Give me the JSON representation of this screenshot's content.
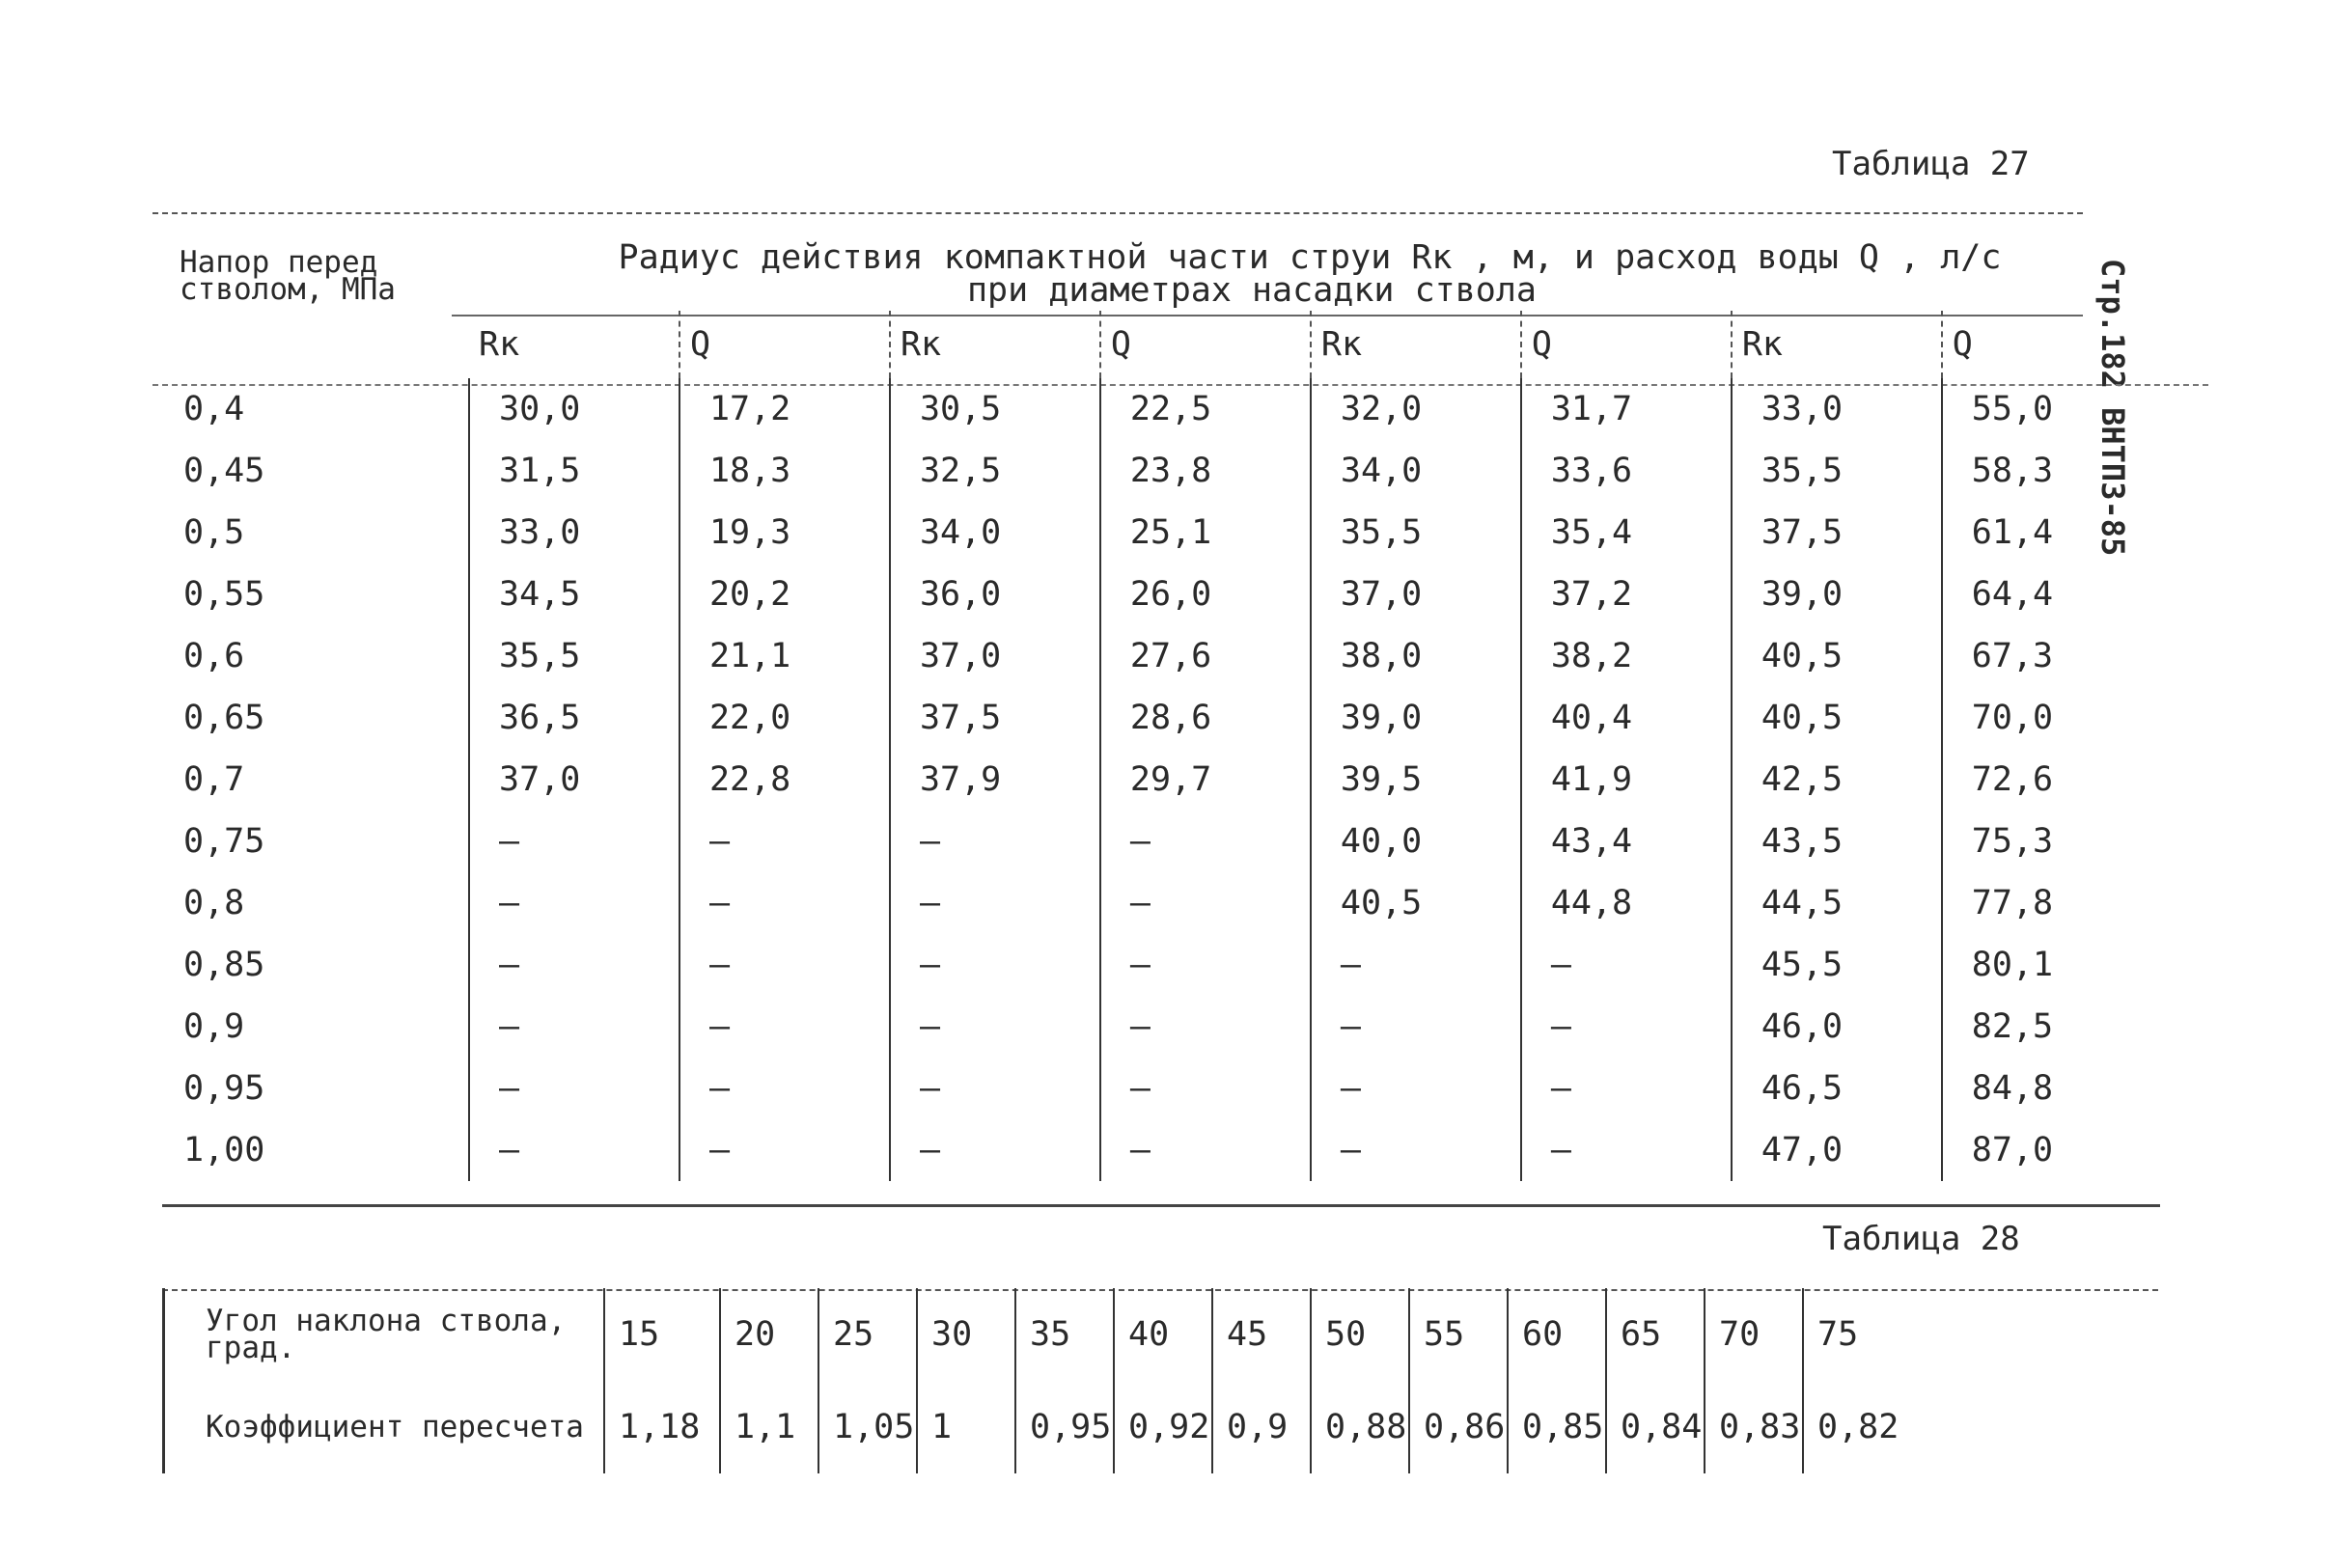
{
  "table27": {
    "title": "Таблица 27",
    "col0_header": "Напор перед стволом, МПа",
    "main_header_line1": "Радиус действия компактной части струи Rк , м, и расход воды Q , л/с",
    "main_header_line2": "при диаметрах насадки ствола",
    "sub_headers": [
      "Rк",
      "Q",
      "Rк",
      "Q",
      "Rк",
      "Q",
      "Rк",
      "Q"
    ],
    "rows": [
      [
        "0,4",
        "30,0",
        "17,2",
        "30,5",
        "22,5",
        "32,0",
        "31,7",
        "33,0",
        "55,0"
      ],
      [
        "0,45",
        "31,5",
        "18,3",
        "32,5",
        "23,8",
        "34,0",
        "33,6",
        "35,5",
        "58,3"
      ],
      [
        "0,5",
        "33,0",
        "19,3",
        "34,0",
        "25,1",
        "35,5",
        "35,4",
        "37,5",
        "61,4"
      ],
      [
        "0,55",
        "34,5",
        "20,2",
        "36,0",
        "26,0",
        "37,0",
        "37,2",
        "39,0",
        "64,4"
      ],
      [
        "0,6",
        "35,5",
        "21,1",
        "37,0",
        "27,6",
        "38,0",
        "38,2",
        "40,5",
        "67,3"
      ],
      [
        "0,65",
        "36,5",
        "22,0",
        "37,5",
        "28,6",
        "39,0",
        "40,4",
        "40,5",
        "70,0"
      ],
      [
        "0,7",
        "37,0",
        "22,8",
        "37,9",
        "29,7",
        "39,5",
        "41,9",
        "42,5",
        "72,6"
      ],
      [
        "0,75",
        "–",
        "–",
        "–",
        "–",
        "40,0",
        "43,4",
        "43,5",
        "75,3"
      ],
      [
        "0,8",
        "–",
        "–",
        "–",
        "–",
        "40,5",
        "44,8",
        "44,5",
        "77,8"
      ],
      [
        "0,85",
        "–",
        "–",
        "–",
        "–",
        "–",
        "–",
        "45,5",
        "80,1"
      ],
      [
        "0,9",
        "–",
        "–",
        "–",
        "–",
        "–",
        "–",
        "46,0",
        "82,5"
      ],
      [
        "0,95",
        "–",
        "–",
        "–",
        "–",
        "–",
        "–",
        "46,5",
        "84,8"
      ],
      [
        "1,00",
        "–",
        "–",
        "–",
        "–",
        "–",
        "–",
        "47,0",
        "87,0"
      ]
    ]
  },
  "side_label": "Стр.182 ВНТП3-85",
  "table28": {
    "title": "Таблица 28",
    "row1_label": "Угол наклона ствола, град.",
    "row2_label": "Коэффициент пересчета",
    "angles": [
      "15",
      "20",
      "25",
      "30",
      "35",
      "40",
      "45",
      "50",
      "55",
      "60",
      "65",
      "70",
      "75"
    ],
    "coefficients": [
      "1,18",
      "1,1",
      "1,05",
      "1",
      "0,95",
      "0,92",
      "0,9",
      "0,88",
      "0,86",
      "0,85",
      "0,84",
      "0,83",
      "0,82"
    ]
  }
}
